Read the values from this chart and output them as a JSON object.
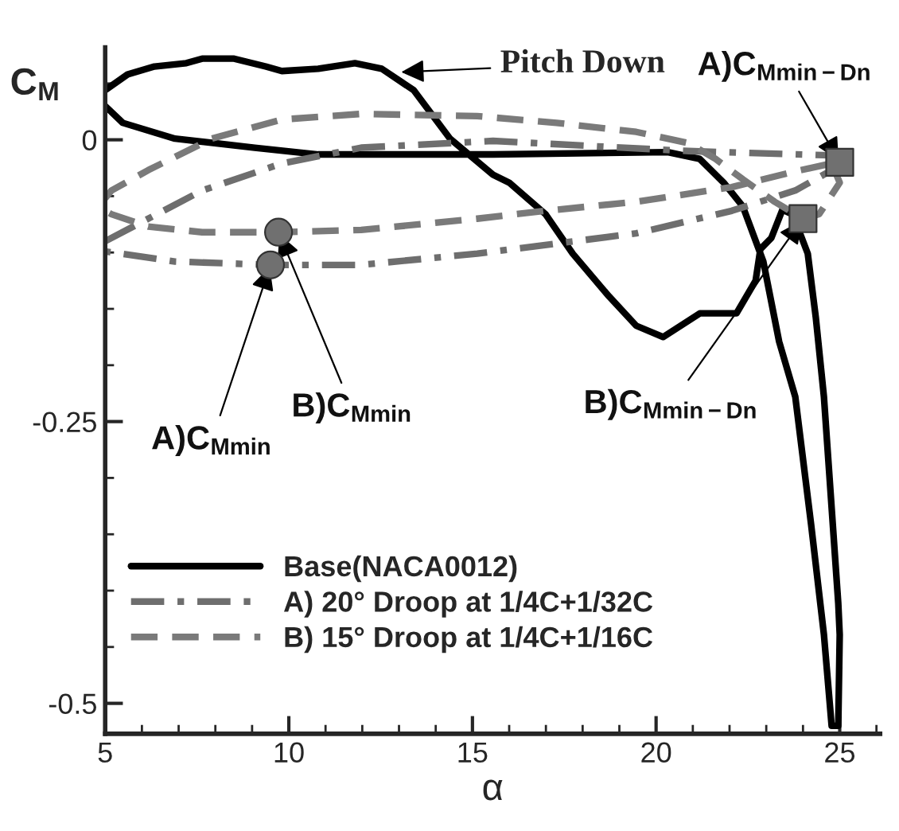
{
  "chart_data": {
    "type": "line",
    "xlabel": "α",
    "ylabel": "C$_{M}$",
    "xlim": [
      5,
      26.1
    ],
    "ylim": [
      -0.527,
      0.082
    ],
    "xticks": [
      5,
      10,
      15,
      20,
      25
    ],
    "yticks": [
      0,
      -0.25,
      -0.5
    ],
    "grid": false,
    "legend": "bottom left",
    "series": [
      {
        "name": "Base(NACA0012)",
        "color": "#000000",
        "line_style": "solid",
        "marker": "none",
        "x": [
          5.0,
          5.48,
          6.9,
          9.07,
          10.8,
          15.56,
          20.32,
          21.19,
          21.84,
          22.36,
          22.92,
          23.35,
          23.79,
          24.22,
          24.57,
          24.78,
          24.96,
          25.0,
          24.96,
          24.57,
          24.35,
          24.13,
          23.92,
          23.7,
          23.44,
          23.14,
          22.84,
          22.71,
          22.19,
          21.19,
          20.19,
          19.46,
          18.72,
          17.73,
          16.99,
          16.0,
          15.56,
          14.39,
          13.4,
          12.53,
          11.8,
          10.8,
          9.81,
          9.37,
          8.51,
          7.64,
          7.21,
          6.34,
          5.61,
          5.0
        ],
        "values": [
          0.03,
          0.015,
          0.001,
          -0.007,
          -0.013,
          -0.013,
          -0.011,
          -0.017,
          -0.038,
          -0.059,
          -0.108,
          -0.179,
          -0.228,
          -0.341,
          -0.439,
          -0.52,
          -0.52,
          -0.439,
          -0.411,
          -0.228,
          -0.158,
          -0.101,
          -0.083,
          -0.066,
          -0.062,
          -0.087,
          -0.097,
          -0.125,
          -0.154,
          -0.154,
          -0.175,
          -0.165,
          -0.139,
          -0.101,
          -0.066,
          -0.038,
          -0.031,
          0.001,
          0.044,
          0.063,
          0.068,
          0.063,
          0.061,
          0.065,
          0.072,
          0.072,
          0.068,
          0.065,
          0.058,
          0.044
        ]
      },
      {
        "name": "A) 20° Droop at 1/4C+1/32C",
        "color": "#6e6e6e",
        "line_style": "dashdot",
        "marker": "none",
        "x": [
          5.0,
          7.64,
          9.81,
          11.97,
          15.56,
          20.89,
          24.96,
          25.0,
          24.78,
          23.79,
          22.06,
          19.46,
          15.13,
          11.97,
          9.5,
          6.9,
          5.0
        ],
        "values": [
          -0.09,
          -0.045,
          -0.021,
          -0.007,
          -0.001,
          -0.01,
          -0.014,
          -0.02,
          -0.027,
          -0.045,
          -0.063,
          -0.083,
          -0.101,
          -0.111,
          -0.111,
          -0.108,
          -0.099
        ]
      },
      {
        "name": "B) 15° Droop at 1/4C+1/16C",
        "color": "#7a7a7a",
        "line_style": "dashed",
        "marker": "none",
        "x": [
          5.0,
          5.17,
          6.17,
          7.9,
          9.81,
          11.97,
          15.13,
          17.29,
          19.46,
          20.89,
          21.62,
          22.36,
          23.23,
          24.0,
          24.44,
          25.0,
          24.78,
          23.79,
          22.06,
          19.46,
          16.99,
          15.13,
          11.97,
          9.72,
          7.64,
          6.17,
          5.17,
          5.0
        ],
        "values": [
          -0.052,
          -0.045,
          -0.027,
          0.001,
          0.018,
          0.023,
          0.021,
          0.015,
          0.007,
          -0.003,
          -0.017,
          -0.035,
          -0.055,
          -0.07,
          -0.066,
          -0.038,
          -0.021,
          -0.028,
          -0.042,
          -0.055,
          -0.063,
          -0.07,
          -0.08,
          -0.082,
          -0.082,
          -0.077,
          -0.066,
          -0.063
        ]
      },
      {
        "type": "scatter",
        "color": "#707070",
        "marker": "circle",
        "x": [
          9.5,
          9.72
        ],
        "values": [
          -0.111,
          -0.082
        ]
      },
      {
        "type": "scatter",
        "color": "#707070",
        "marker": "square",
        "x": [
          25.0,
          24.0
        ],
        "values": [
          -0.02,
          -0.07
        ]
      }
    ],
    "annotations": [
      {
        "text": "A)C$_{Mmin}$",
        "x": 9.5,
        "y": -0.111
      },
      {
        "text": "B)C$_{Mmin}$",
        "x": 9.72,
        "y": -0.082
      },
      {
        "text": "A)C$_{Mmin−Dn}$",
        "x": 25.0,
        "y": -0.02
      },
      {
        "text": "B)C$_{Mmin−Dn}$",
        "x": 24.0,
        "y": -0.07
      },
      "Pitch Down"
    ]
  }
}
